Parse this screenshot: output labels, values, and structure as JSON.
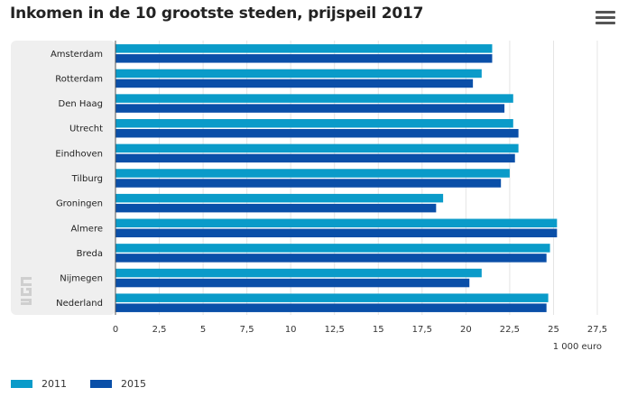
{
  "header": {
    "title": "Inkomen in de 10 grootste steden, prijspeil 2017",
    "menu_icon": "hamburger-menu-icon"
  },
  "colors": {
    "series_2011": "#0a9bc9",
    "series_2015": "#0a4fa8",
    "panel": "#efefef"
  },
  "chart_data": {
    "type": "bar",
    "orientation": "horizontal",
    "title": "Inkomen in de 10 grootste steden, prijspeil 2017",
    "xlabel": "1 000 euro",
    "ylabel": "",
    "xlim": [
      0,
      27.5
    ],
    "ticks": [
      "0",
      "2,5",
      "5",
      "7,5",
      "10",
      "12,5",
      "15",
      "17,5",
      "20",
      "22,5",
      "25",
      "27,5"
    ],
    "categories": [
      "Amsterdam",
      "Rotterdam",
      "Den Haag",
      "Utrecht",
      "Eindhoven",
      "Tilburg",
      "Groningen",
      "Almere",
      "Breda",
      "Nijmegen",
      "Nederland"
    ],
    "series": [
      {
        "name": "2011",
        "values": [
          21.5,
          20.9,
          22.7,
          22.7,
          23.0,
          22.5,
          18.7,
          25.2,
          24.8,
          20.9,
          24.7
        ]
      },
      {
        "name": "2015",
        "values": [
          21.5,
          20.4,
          22.2,
          23.0,
          22.8,
          22.0,
          18.3,
          25.2,
          24.6,
          20.2,
          24.6
        ]
      }
    ],
    "grid": true,
    "legend_position": "bottom-left"
  },
  "logo": {
    "name": "cbs-logo"
  }
}
